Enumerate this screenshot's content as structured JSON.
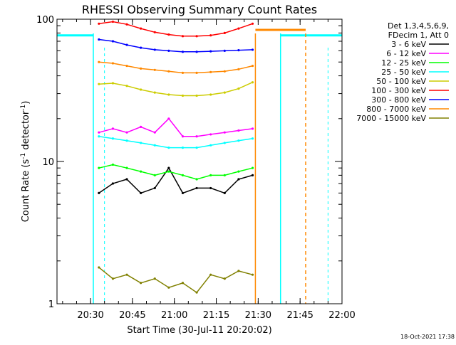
{
  "chart_data": {
    "type": "line",
    "title": "RHESSI Observing Summary Count Rates",
    "xlabel": "Start Time (30-Jul-11 20:20:02)",
    "ylabel": "Count Rate (s",
    "ylabel_sup": "-1",
    "ylabel_tail": " detector",
    "ylabel_sup2": "-1",
    "ylabel_end": ")",
    "yscale": "log",
    "ylim": [
      1,
      100
    ],
    "xlim_minutes": [
      20.3,
      22.0
    ],
    "x_ticks": [
      "20:30",
      "20:45",
      "21:00",
      "21:15",
      "21:30",
      "21:45",
      "22:00"
    ],
    "y_ticks": [
      "1",
      "10",
      "100"
    ],
    "legend_header": [
      "Det 1,3,4,5,6,9,",
      "FDecim 1, Att 0"
    ],
    "legend_position": "right",
    "footer_date": "18-Oct-2021 17:38",
    "series": [
      {
        "name": "3 - 6 keV",
        "color": "#000000",
        "values": [
          6.0,
          7.0,
          7.5,
          6.0,
          6.5,
          9.0,
          6.0,
          6.5,
          6.5,
          6.0,
          7.5,
          8.0
        ]
      },
      {
        "name": "6 - 12 keV",
        "color": "#ff00ff",
        "values": [
          16.0,
          17.0,
          16.0,
          17.5,
          16.0,
          20.0,
          15.0,
          15.0,
          15.5,
          16.0,
          16.5,
          17.0
        ]
      },
      {
        "name": "12 - 25 keV",
        "color": "#00ff00",
        "values": [
          9.0,
          9.5,
          9.0,
          8.5,
          8.0,
          8.5,
          8.0,
          7.5,
          8.0,
          8.0,
          8.5,
          9.0
        ]
      },
      {
        "name": "25 - 50 keV",
        "color": "#00ffff",
        "values": [
          15.0,
          14.5,
          14.0,
          13.5,
          13.0,
          12.5,
          12.5,
          12.5,
          13.0,
          13.5,
          14.0,
          14.5
        ]
      },
      {
        "name": "50 - 100 keV",
        "color": "#cccc00",
        "values": [
          35.0,
          35.5,
          34.0,
          32.0,
          30.5,
          29.5,
          29.0,
          29.0,
          29.5,
          30.5,
          32.5,
          36.0
        ]
      },
      {
        "name": "100 - 300 keV",
        "color": "#ff0000",
        "values": [
          93.0,
          96.0,
          92.0,
          86.0,
          81.0,
          78.0,
          76.0,
          76.0,
          77.0,
          80.0,
          86.0,
          93.0
        ]
      },
      {
        "name": "300 - 800 keV",
        "color": "#0000ff",
        "values": [
          72.0,
          70.0,
          66.0,
          63.0,
          61.0,
          60.0,
          59.0,
          59.0,
          59.5,
          60.0,
          60.5,
          61.0
        ]
      },
      {
        "name": "800 - 7000 keV",
        "color": "#ff8800",
        "values": [
          50.0,
          49.0,
          47.0,
          45.0,
          44.0,
          43.0,
          42.0,
          42.0,
          42.5,
          43.0,
          44.5,
          47.0
        ]
      },
      {
        "name": "7000 - 15000 keV",
        "color": "#808000",
        "values": [
          1.8,
          1.5,
          1.6,
          1.4,
          1.5,
          1.3,
          1.4,
          1.2,
          1.6,
          1.5,
          1.7,
          1.6
        ]
      }
    ],
    "series_times": [
      "20:33",
      "20:38",
      "20:43",
      "20:48",
      "20:53",
      "20:58",
      "21:03",
      "21:08",
      "21:13",
      "21:18",
      "21:23",
      "21:28"
    ],
    "attenuator_level": 77,
    "orbit_markers": {
      "night_start": "20:31",
      "night_end": "21:38",
      "saa_start": "21:29",
      "saa_end": "21:47",
      "dashed_cyan": [
        "20:35",
        "21:55"
      ]
    }
  }
}
